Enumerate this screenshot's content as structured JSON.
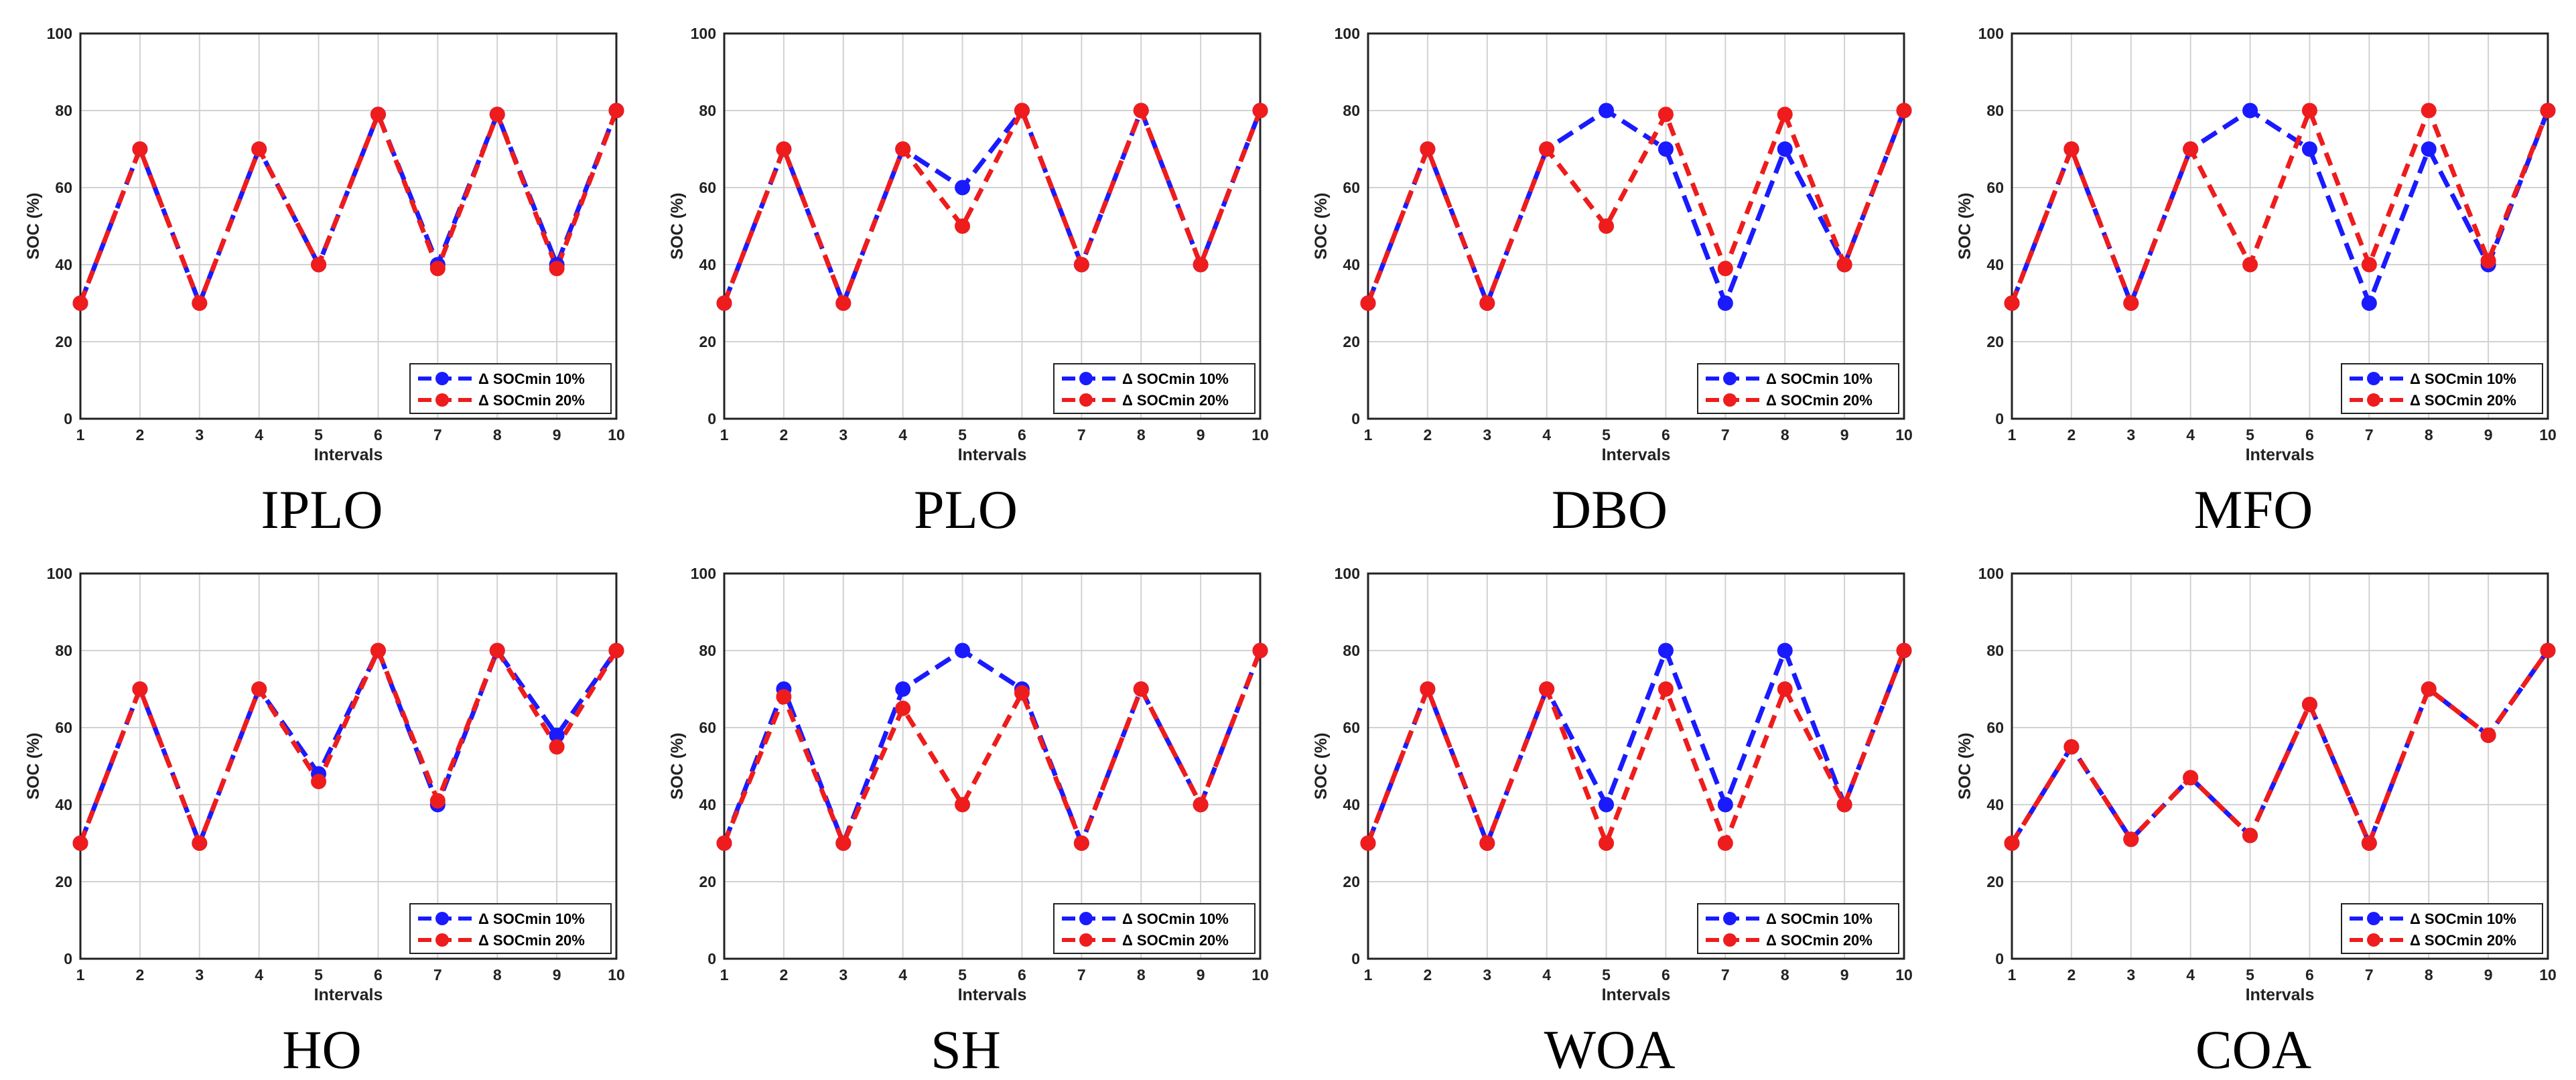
{
  "figure": {
    "legend": [
      "Δ SOCmin 10%",
      "Δ SOCmin 20%"
    ],
    "colors": {
      "series1": "#1a1aff",
      "series2": "#ee1c1c",
      "grid": "#d2d2d2",
      "axis": "#222222"
    }
  },
  "chart_data": [
    {
      "type": "line",
      "title": "IPLO",
      "xlabel": "Intervals",
      "ylabel": "SOC (%)",
      "x": [
        1,
        2,
        3,
        4,
        5,
        6,
        7,
        8,
        9,
        10
      ],
      "xticks": [
        "1",
        "2",
        "3",
        "4",
        "5",
        "6",
        "7",
        "8",
        "9",
        "10"
      ],
      "ylim": [
        0,
        100
      ],
      "yticks": [
        "0",
        "20",
        "40",
        "60",
        "80",
        "100"
      ],
      "grid": true,
      "legend_position": "bottom-right",
      "series": [
        {
          "name": "Δ SOCmin 10%",
          "values": [
            30,
            70,
            30,
            70,
            40,
            79,
            40,
            79,
            40,
            80
          ]
        },
        {
          "name": "Δ SOCmin 20%",
          "values": [
            30,
            70,
            30,
            70,
            40,
            79,
            39,
            79,
            39,
            80
          ]
        }
      ]
    },
    {
      "type": "line",
      "title": "PLO",
      "xlabel": "Intervals",
      "ylabel": "SOC (%)",
      "x": [
        1,
        2,
        3,
        4,
        5,
        6,
        7,
        8,
        9,
        10
      ],
      "xticks": [
        "1",
        "2",
        "3",
        "4",
        "5",
        "6",
        "7",
        "8",
        "9",
        "10"
      ],
      "ylim": [
        0,
        100
      ],
      "yticks": [
        "0",
        "20",
        "40",
        "60",
        "80",
        "100"
      ],
      "grid": true,
      "legend_position": "bottom-right",
      "series": [
        {
          "name": "Δ SOCmin 10%",
          "values": [
            30,
            70,
            30,
            70,
            60,
            80,
            40,
            80,
            40,
            80
          ]
        },
        {
          "name": "Δ SOCmin 20%",
          "values": [
            30,
            70,
            30,
            70,
            50,
            80,
            40,
            80,
            40,
            80
          ]
        }
      ]
    },
    {
      "type": "line",
      "title": "DBO",
      "xlabel": "Intervals",
      "ylabel": "SOC (%)",
      "x": [
        1,
        2,
        3,
        4,
        5,
        6,
        7,
        8,
        9,
        10
      ],
      "xticks": [
        "1",
        "2",
        "3",
        "4",
        "5",
        "6",
        "7",
        "8",
        "9",
        "10"
      ],
      "ylim": [
        0,
        100
      ],
      "yticks": [
        "0",
        "20",
        "40",
        "60",
        "80",
        "100"
      ],
      "grid": true,
      "legend_position": "bottom-right",
      "series": [
        {
          "name": "Δ SOCmin 10%",
          "values": [
            30,
            70,
            30,
            70,
            80,
            70,
            30,
            70,
            40,
            80
          ]
        },
        {
          "name": "Δ SOCmin 20%",
          "values": [
            30,
            70,
            30,
            70,
            50,
            79,
            39,
            79,
            40,
            80
          ]
        }
      ]
    },
    {
      "type": "line",
      "title": "MFO",
      "xlabel": "Intervals",
      "ylabel": "SOC (%)",
      "x": [
        1,
        2,
        3,
        4,
        5,
        6,
        7,
        8,
        9,
        10
      ],
      "xticks": [
        "1",
        "2",
        "3",
        "4",
        "5",
        "6",
        "7",
        "8",
        "9",
        "10"
      ],
      "ylim": [
        0,
        100
      ],
      "yticks": [
        "0",
        "20",
        "40",
        "60",
        "80",
        "100"
      ],
      "grid": true,
      "legend_position": "bottom-right",
      "series": [
        {
          "name": "Δ SOCmin 10%",
          "values": [
            30,
            70,
            30,
            70,
            80,
            70,
            30,
            70,
            40,
            80
          ]
        },
        {
          "name": "Δ SOCmin 20%",
          "values": [
            30,
            70,
            30,
            70,
            40,
            80,
            40,
            80,
            41,
            80
          ]
        }
      ]
    },
    {
      "type": "line",
      "title": "HO",
      "xlabel": "Intervals",
      "ylabel": "SOC (%)",
      "x": [
        1,
        2,
        3,
        4,
        5,
        6,
        7,
        8,
        9,
        10
      ],
      "xticks": [
        "1",
        "2",
        "3",
        "4",
        "5",
        "6",
        "7",
        "8",
        "9",
        "10"
      ],
      "ylim": [
        0,
        100
      ],
      "yticks": [
        "0",
        "20",
        "40",
        "60",
        "80",
        "100"
      ],
      "grid": true,
      "legend_position": "bottom-right",
      "series": [
        {
          "name": "Δ SOCmin 10%",
          "values": [
            30,
            70,
            30,
            70,
            48,
            80,
            40,
            80,
            58,
            80
          ]
        },
        {
          "name": "Δ SOCmin 20%",
          "values": [
            30,
            70,
            30,
            70,
            46,
            80,
            41,
            80,
            55,
            80
          ]
        }
      ]
    },
    {
      "type": "line",
      "title": "SH",
      "xlabel": "Intervals",
      "ylabel": "SOC (%)",
      "x": [
        1,
        2,
        3,
        4,
        5,
        6,
        7,
        8,
        9,
        10
      ],
      "xticks": [
        "1",
        "2",
        "3",
        "4",
        "5",
        "6",
        "7",
        "8",
        "9",
        "10"
      ],
      "ylim": [
        0,
        100
      ],
      "yticks": [
        "0",
        "20",
        "40",
        "60",
        "80",
        "100"
      ],
      "grid": true,
      "legend_position": "bottom-right",
      "series": [
        {
          "name": "Δ SOCmin 10%",
          "values": [
            30,
            70,
            30,
            70,
            80,
            70,
            30,
            70,
            40,
            80
          ]
        },
        {
          "name": "Δ SOCmin 20%",
          "values": [
            30,
            68,
            30,
            65,
            40,
            69,
            30,
            70,
            40,
            80
          ]
        }
      ]
    },
    {
      "type": "line",
      "title": "WOA",
      "xlabel": "Intervals",
      "ylabel": "SOC (%)",
      "x": [
        1,
        2,
        3,
        4,
        5,
        6,
        7,
        8,
        9,
        10
      ],
      "xticks": [
        "1",
        "2",
        "3",
        "4",
        "5",
        "6",
        "7",
        "8",
        "9",
        "10"
      ],
      "ylim": [
        0,
        100
      ],
      "yticks": [
        "0",
        "20",
        "40",
        "60",
        "80",
        "100"
      ],
      "grid": true,
      "legend_position": "bottom-right",
      "series": [
        {
          "name": "Δ SOCmin 10%",
          "values": [
            30,
            70,
            30,
            70,
            40,
            80,
            40,
            80,
            40,
            80
          ]
        },
        {
          "name": "Δ SOCmin 20%",
          "values": [
            30,
            70,
            30,
            70,
            30,
            70,
            30,
            70,
            40,
            80
          ]
        }
      ]
    },
    {
      "type": "line",
      "title": "COA",
      "xlabel": "Intervals",
      "ylabel": "SOC (%)",
      "x": [
        1,
        2,
        3,
        4,
        5,
        6,
        7,
        8,
        9,
        10
      ],
      "xticks": [
        "1",
        "2",
        "3",
        "4",
        "5",
        "6",
        "7",
        "8",
        "9",
        "10"
      ],
      "ylim": [
        0,
        100
      ],
      "yticks": [
        "0",
        "20",
        "40",
        "60",
        "80",
        "100"
      ],
      "grid": true,
      "legend_position": "bottom-right",
      "series": [
        {
          "name": "Δ SOCmin 10%",
          "values": [
            30,
            55,
            31,
            47,
            32,
            66,
            30,
            70,
            58,
            80
          ]
        },
        {
          "name": "Δ SOCmin 20%",
          "values": [
            30,
            55,
            31,
            47,
            32,
            66,
            30,
            70,
            58,
            80
          ]
        }
      ]
    }
  ]
}
